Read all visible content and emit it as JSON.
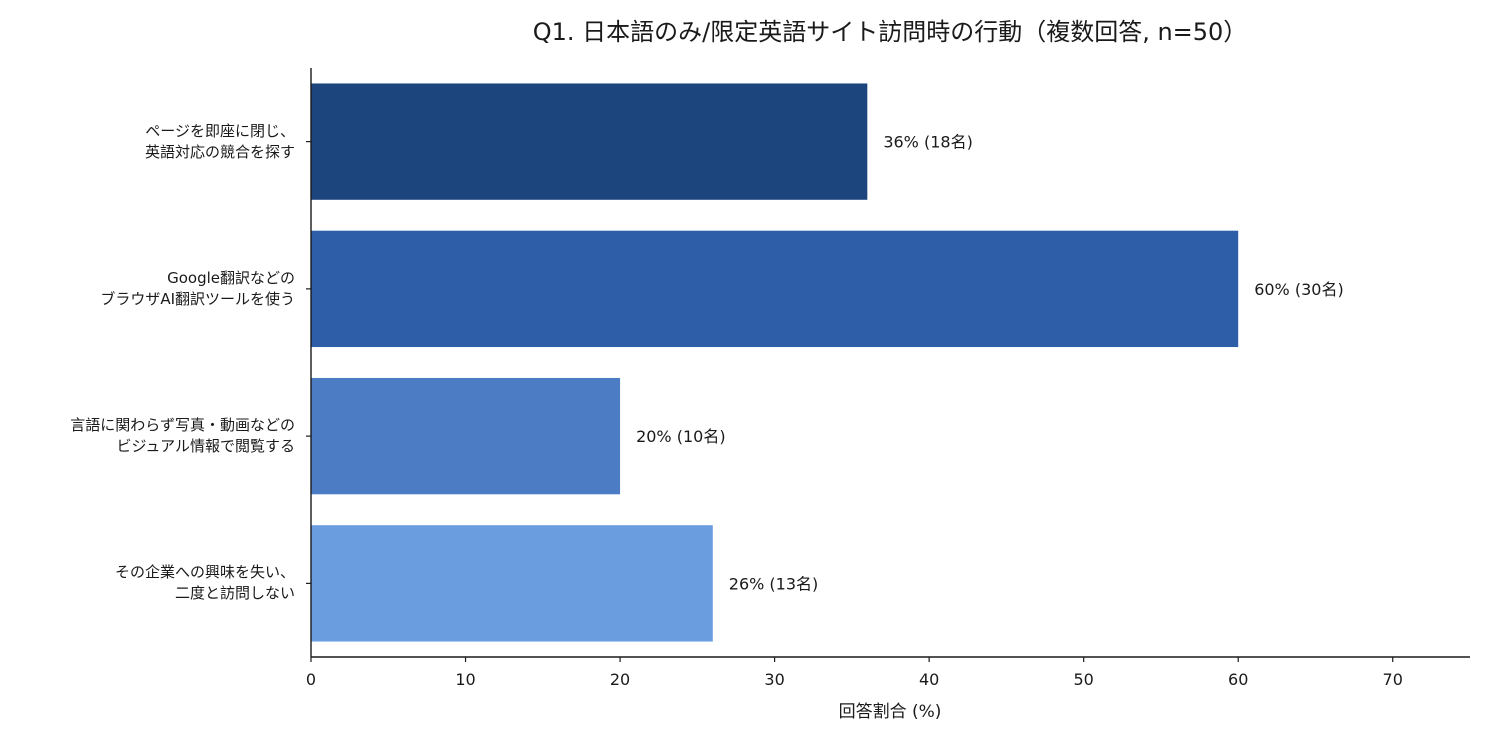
{
  "chart_data": {
    "type": "bar",
    "orientation": "horizontal",
    "title": "Q1. 日本語のみ/限定英語サイト訪問時の行動（複数回答, n=50）",
    "xlabel": "回答割合 (%)",
    "ylabel": "",
    "xlim": [
      0,
      75
    ],
    "xticks": [
      0,
      10,
      20,
      30,
      40,
      50,
      60,
      70
    ],
    "grid": false,
    "categories": [
      [
        "ページを即座に閉じ、",
        "英語対応の競合を探す"
      ],
      [
        "Google翻訳などの",
        "ブラウザAI翻訳ツールを使う"
      ],
      [
        "言語に関わらず写真・動画などの",
        "ビジュアル情報で閲覧する"
      ],
      [
        "その企業への興味を失い、",
        "二度と訪問しない"
      ]
    ],
    "values": [
      36,
      60,
      20,
      26
    ],
    "data_labels": [
      "36% (18名)",
      "60% (30名)",
      "20% (10名)",
      "26% (13名)"
    ],
    "colors": [
      "#1c457e",
      "#2e5ea8",
      "#4c7cc4",
      "#6a9ce0"
    ]
  }
}
